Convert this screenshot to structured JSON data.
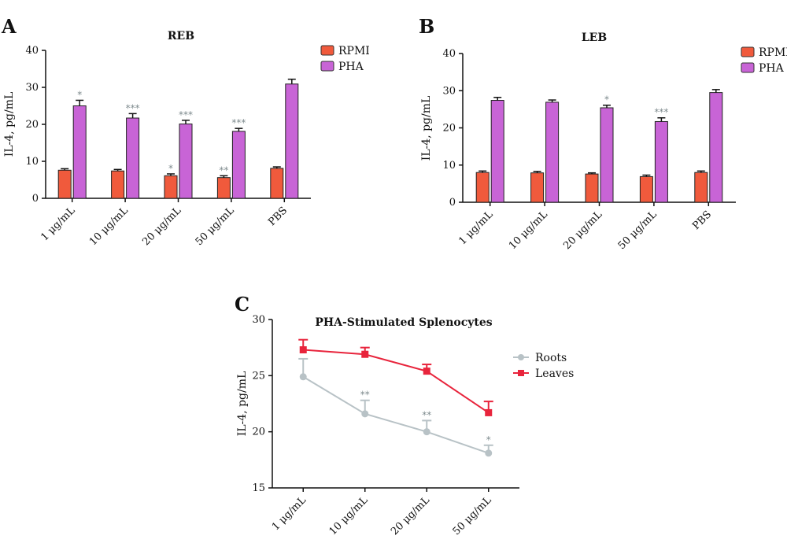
{
  "colors": {
    "rpmi": "#f05a3c",
    "pha": "#c864d6",
    "roots": "#b8c2c6",
    "leaves": "#e8243c",
    "ann": "#7d8a8d"
  },
  "chart_data": [
    {
      "type": "bar",
      "panel": "A",
      "title": "REB",
      "ylabel": "IL-4, pg/mL",
      "ylim": [
        0,
        40
      ],
      "yticks": [
        0,
        10,
        20,
        30,
        40
      ],
      "categories": [
        "1 μg/mL",
        "10 μg/mL",
        "20 μg/mL",
        "50 μg/mL",
        "PBS"
      ],
      "series": [
        {
          "name": "RPMI",
          "values": [
            7.6,
            7.4,
            6.1,
            5.6,
            8.1
          ],
          "errors": [
            0.4,
            0.4,
            0.5,
            0.5,
            0.4
          ],
          "annotations": [
            "",
            "",
            "*",
            "**",
            ""
          ]
        },
        {
          "name": "PHA",
          "values": [
            25.0,
            21.7,
            20.1,
            18.1,
            30.9
          ],
          "errors": [
            1.5,
            1.2,
            1.0,
            0.8,
            1.3
          ],
          "annotations": [
            "*",
            "***",
            "***",
            "***",
            ""
          ]
        }
      ],
      "legend_position": "top-right"
    },
    {
      "type": "bar",
      "panel": "B",
      "title": "LEB",
      "ylabel": "IL-4, pg/mL",
      "ylim": [
        0,
        40
      ],
      "yticks": [
        0,
        10,
        20,
        30,
        40
      ],
      "categories": [
        "1 μg/mL",
        "10 μg/mL",
        "20 μg/mL",
        "50 μg/mL",
        "PBS"
      ],
      "series": [
        {
          "name": "RPMI",
          "values": [
            8.0,
            7.9,
            7.6,
            6.9,
            8.0
          ],
          "errors": [
            0.4,
            0.4,
            0.3,
            0.4,
            0.4
          ],
          "annotations": [
            "",
            "",
            "",
            "",
            ""
          ]
        },
        {
          "name": "PHA",
          "values": [
            27.4,
            26.9,
            25.4,
            21.7,
            29.5
          ],
          "errors": [
            0.8,
            0.6,
            0.7,
            1.0,
            0.8
          ],
          "annotations": [
            "",
            "",
            "*",
            "***",
            ""
          ]
        }
      ],
      "legend_position": "top-right"
    },
    {
      "type": "line",
      "panel": "C",
      "title": "PHA-Stimulated Splenocytes",
      "ylabel": "IL-4, pg/mL",
      "ylim": [
        15,
        30
      ],
      "yticks": [
        15,
        20,
        25,
        30
      ],
      "categories": [
        "1 μg/mL",
        "10 μg/mL",
        "20 μg/mL",
        "50 μg/mL"
      ],
      "series": [
        {
          "name": "Roots",
          "values": [
            24.9,
            21.6,
            20.0,
            18.1
          ],
          "errors": [
            1.6,
            1.2,
            1.0,
            0.7
          ],
          "annotations": [
            "",
            "**",
            "**",
            "*"
          ]
        },
        {
          "name": "Leaves",
          "values": [
            27.3,
            26.9,
            25.4,
            21.7
          ],
          "errors": [
            0.9,
            0.6,
            0.6,
            1.0
          ],
          "annotations": [
            "",
            "",
            "",
            ""
          ]
        }
      ],
      "legend_position": "right"
    }
  ]
}
